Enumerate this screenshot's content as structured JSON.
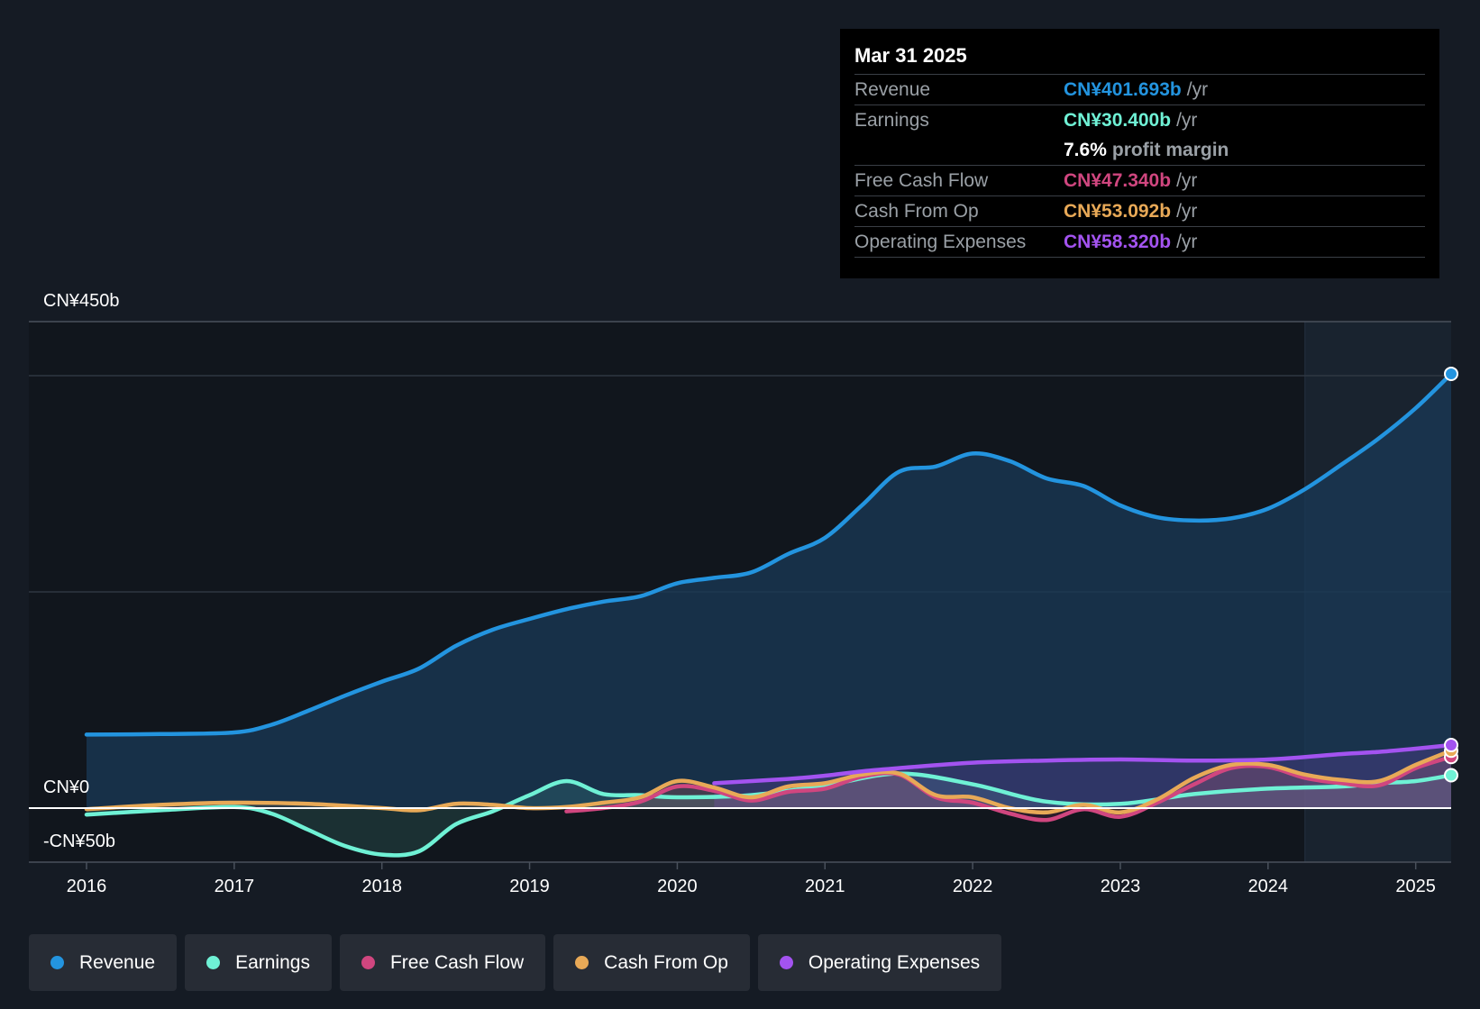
{
  "tooltip": {
    "date": "Mar 31 2025",
    "rows": [
      {
        "label": "Revenue",
        "value": "CN¥401.693b",
        "unit": "/yr",
        "color": "#2394df"
      },
      {
        "label": "Earnings",
        "value": "CN¥30.400b",
        "unit": "/yr",
        "color": "#6ff1d5"
      },
      {
        "label": "",
        "value": "7.6%",
        "unit": "profit margin"
      },
      {
        "label": "Free Cash Flow",
        "value": "CN¥47.340b",
        "unit": "/yr",
        "color": "#d0467f"
      },
      {
        "label": "Cash From Op",
        "value": "CN¥53.092b",
        "unit": "/yr",
        "color": "#e8a957"
      },
      {
        "label": "Operating Expenses",
        "value": "CN¥58.320b",
        "unit": "/yr",
        "color": "#a353f0"
      }
    ]
  },
  "legend": [
    {
      "label": "Revenue",
      "color": "#2394df"
    },
    {
      "label": "Earnings",
      "color": "#6ff1d5"
    },
    {
      "label": "Free Cash Flow",
      "color": "#d0467f"
    },
    {
      "label": "Cash From Op",
      "color": "#e8a957"
    },
    {
      "label": "Operating Expenses",
      "color": "#a353f0"
    }
  ],
  "chart_data": {
    "type": "area",
    "title": "",
    "xlabel": "",
    "ylabel": "",
    "ylim": [
      -50,
      450
    ],
    "xlim": [
      2016,
      2025.24
    ],
    "y_tick_labels": [
      {
        "value": 450,
        "label": "CN¥450b"
      },
      {
        "value": 0,
        "label": "CN¥0"
      },
      {
        "value": -50,
        "label": "-CN¥50b"
      }
    ],
    "x_ticks": [
      2016,
      2017,
      2018,
      2019,
      2020,
      2021,
      2022,
      2023,
      2024,
      2025
    ],
    "gridlines": [
      400,
      200
    ],
    "forecast_start": 2024.25,
    "series": [
      {
        "name": "Revenue",
        "color": "#2394df",
        "x": [
          2016,
          2016.5,
          2017,
          2017.25,
          2017.5,
          2017.75,
          2018,
          2018.25,
          2018.5,
          2018.75,
          2019,
          2019.25,
          2019.5,
          2019.75,
          2020,
          2020.25,
          2020.5,
          2020.75,
          2021,
          2021.25,
          2021.5,
          2021.75,
          2022,
          2022.25,
          2022.5,
          2022.75,
          2023,
          2023.25,
          2023.5,
          2023.75,
          2024,
          2024.25,
          2024.5,
          2024.75,
          2025,
          2025.24
        ],
        "y": [
          68,
          68.5,
          70,
          77,
          90,
          104,
          117,
          129,
          150,
          165,
          175,
          184,
          191,
          196,
          208,
          213,
          218,
          235,
          250,
          280,
          311,
          316,
          328,
          321,
          305,
          298,
          280,
          269,
          266,
          268,
          277,
          295,
          318,
          342,
          370,
          401.7
        ]
      },
      {
        "name": "Earnings",
        "color": "#6ff1d5",
        "x": [
          2016,
          2016.5,
          2017,
          2017.25,
          2017.5,
          2017.75,
          2018,
          2018.25,
          2018.5,
          2018.75,
          2019,
          2019.25,
          2019.5,
          2019.75,
          2020,
          2020.5,
          2021,
          2021.5,
          2022,
          2022.5,
          2023,
          2023.5,
          2024,
          2024.5,
          2024.75,
          2025,
          2025.24
        ],
        "y": [
          -6,
          -2,
          1,
          -5,
          -20,
          -35,
          -43,
          -40,
          -15,
          -3,
          12,
          25,
          13,
          12,
          10,
          12,
          21,
          32,
          22,
          6,
          4,
          13,
          18,
          20,
          23,
          25,
          30.4
        ]
      },
      {
        "name": "Free Cash Flow",
        "color": "#d0467f",
        "x": [
          2019.25,
          2019.5,
          2019.75,
          2020,
          2020.25,
          2020.5,
          2020.75,
          2021,
          2021.25,
          2021.5,
          2021.75,
          2022,
          2022.25,
          2022.5,
          2022.75,
          2023,
          2023.25,
          2023.5,
          2023.75,
          2024,
          2024.25,
          2024.5,
          2024.75,
          2025,
          2025.24
        ],
        "y": [
          -3,
          0,
          6,
          20,
          16,
          7,
          15,
          18,
          29,
          31,
          10,
          5,
          -5,
          -11,
          -1,
          -8,
          5,
          22,
          37,
          38,
          28,
          23,
          21,
          37,
          47.3
        ]
      },
      {
        "name": "Cash From Op",
        "color": "#e8a957",
        "x": [
          2016,
          2016.5,
          2017,
          2017.5,
          2018,
          2018.25,
          2018.5,
          2018.75,
          2019,
          2019.25,
          2019.5,
          2019.75,
          2020,
          2020.25,
          2020.5,
          2020.75,
          2021,
          2021.25,
          2021.5,
          2021.75,
          2022,
          2022.25,
          2022.5,
          2022.75,
          2023,
          2023.25,
          2023.5,
          2023.75,
          2024,
          2024.25,
          2024.5,
          2024.75,
          2025,
          2025.24
        ],
        "y": [
          -1,
          3,
          5,
          4,
          0,
          -2,
          4,
          3,
          0,
          1,
          5,
          10,
          25,
          19,
          10,
          20,
          23,
          31,
          32,
          12,
          10,
          0,
          -4,
          3,
          -4,
          8,
          28,
          40,
          40,
          31,
          26,
          25,
          40,
          53.1
        ]
      },
      {
        "name": "Operating Expenses",
        "color": "#a353f0",
        "x": [
          2020.25,
          2020.75,
          2021,
          2021.25,
          2021.5,
          2022,
          2022.5,
          2023,
          2023.5,
          2024,
          2024.5,
          2024.75,
          2025,
          2025.24
        ],
        "y": [
          23,
          27,
          30,
          34,
          37,
          42,
          44,
          45,
          44,
          45,
          50,
          52,
          55,
          58.3
        ]
      }
    ]
  }
}
